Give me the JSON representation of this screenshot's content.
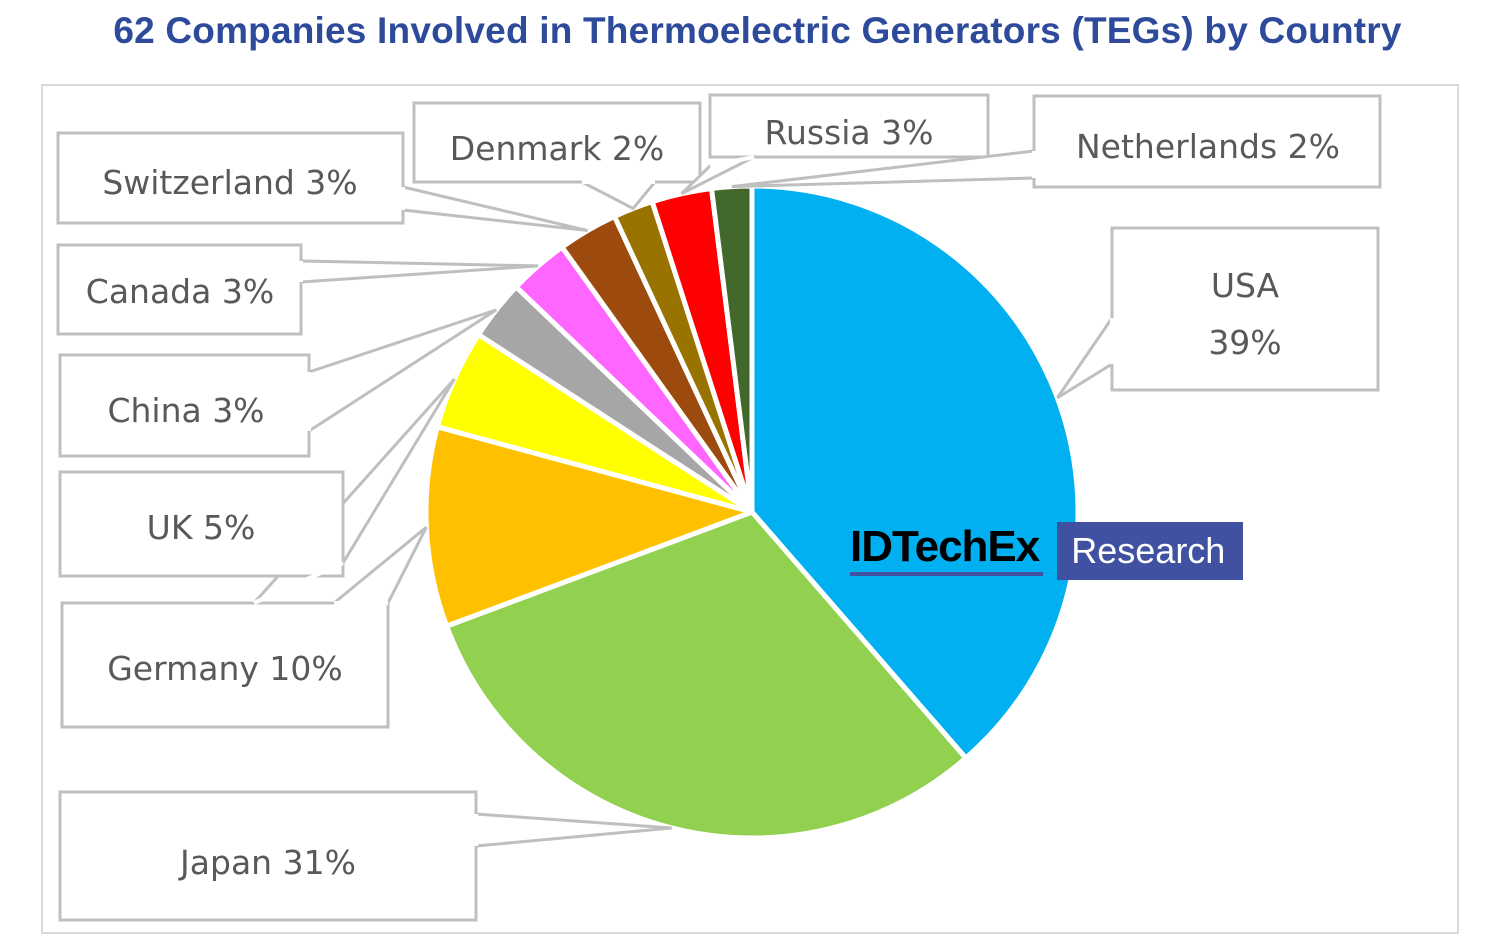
{
  "title": "62 Companies Involved in Thermoelectric Generators (TEGs) by Country",
  "watermark": {
    "brand": "IDTechEx",
    "tag": "Research",
    "brand_color": "#3f51a0"
  },
  "chart_data": {
    "type": "pie",
    "title": "62 Companies Involved in Thermoelectric Generators (TEGs) by Country",
    "start_angle_deg": -90,
    "direction": "clockwise",
    "unit": "%",
    "slices": [
      {
        "label": "USA",
        "value": 39,
        "display": "39%",
        "color": "#00b0f0"
      },
      {
        "label": "Japan",
        "value": 31,
        "display": "31%",
        "color": "#92d050"
      },
      {
        "label": "Germany",
        "value": 10,
        "display": "10%",
        "color": "#ffc000"
      },
      {
        "label": "UK",
        "value": 5,
        "display": "5%",
        "color": "#ffff00"
      },
      {
        "label": "China",
        "value": 3,
        "display": "3%",
        "color": "#a6a6a6"
      },
      {
        "label": "Canada",
        "value": 3,
        "display": "3%",
        "color": "#ff66ff"
      },
      {
        "label": "Switzerland",
        "value": 3,
        "display": "3%",
        "color": "#9c4a0e"
      },
      {
        "label": "Denmark",
        "value": 2,
        "display": "2%",
        "color": "#997300"
      },
      {
        "label": "Russia",
        "value": 3,
        "display": "3%",
        "color": "#ff0000"
      },
      {
        "label": "Netherlands",
        "value": 2,
        "display": "2%",
        "color": "#43682b"
      }
    ],
    "data_labels": [
      {
        "text": "USA",
        "text2": "39%"
      },
      {
        "text": "Japan 31%"
      },
      {
        "text": "Germany 10%"
      },
      {
        "text": "UK 5%"
      },
      {
        "text": "China 3%"
      },
      {
        "text": "Canada 3%"
      },
      {
        "text": "Switzerland 3%"
      },
      {
        "text": "Denmark 2%"
      },
      {
        "text": "Russia 3%"
      },
      {
        "text": "Netherlands 2%"
      }
    ],
    "legend": "none (data callouts)"
  }
}
